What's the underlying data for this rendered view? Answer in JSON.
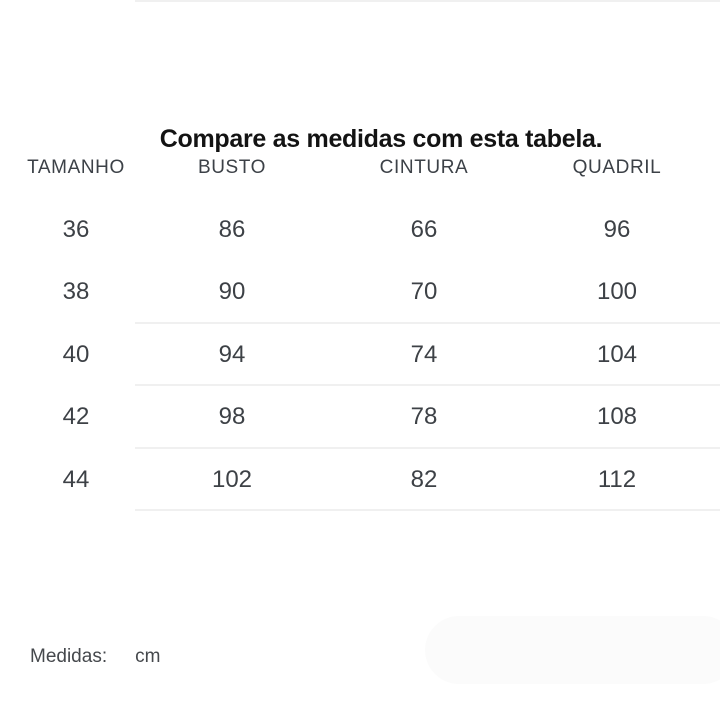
{
  "table": {
    "title": "Compare as medidas com esta tabela.",
    "columns": [
      "TAMANHO",
      "BUSTO",
      "CINTURA",
      "QUADRIL"
    ],
    "rows": [
      [
        "36",
        "86",
        "66",
        "96"
      ],
      [
        "38",
        "90",
        "70",
        "100"
      ],
      [
        "40",
        "94",
        "74",
        "104"
      ],
      [
        "42",
        "98",
        "78",
        "108"
      ],
      [
        "44",
        "102",
        "82",
        "112"
      ]
    ]
  },
  "footer": {
    "label": "Medidas:",
    "unit": "cm"
  },
  "colors": {
    "background": "#ffffff",
    "title_text": "#131313",
    "header_text": "#3c4147",
    "value_text": "#3d4146",
    "divider": "#f0f0f0",
    "faint_panel": "#fbfbfb"
  }
}
